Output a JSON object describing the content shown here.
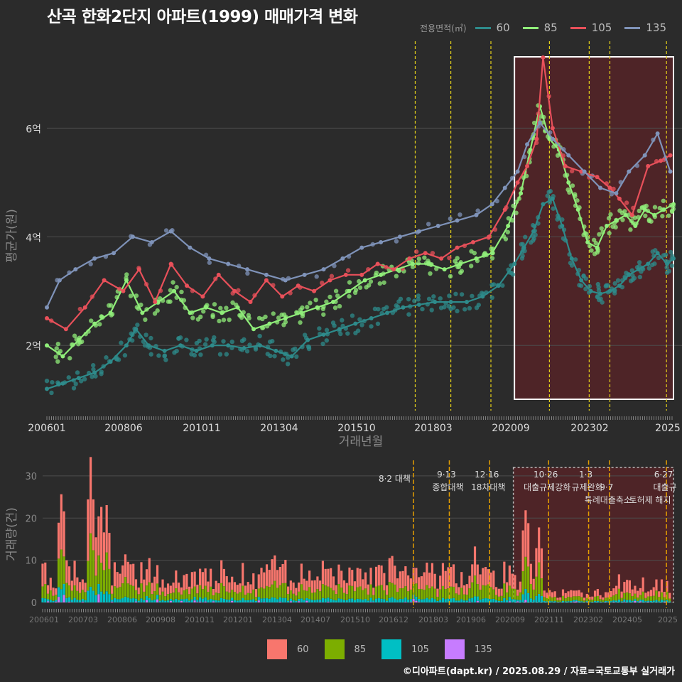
{
  "title": "산곡 한화2단지 아파트(1999) 매매가격 변화",
  "footer": "©디아파트(dapt.kr) / 2025.08.29 / 자료=국토교통부 실거래가",
  "legend_title": "전용면적(㎡)",
  "colors": {
    "60": "#2e8b8b",
    "85": "#90ee7a",
    "105": "#e8505a",
    "135": "#7f93b9",
    "bar60": "#f8766d",
    "bar85": "#7cae00",
    "bar105": "#00bfc4",
    "bar135": "#c77cff"
  },
  "legend_bottom": [
    {
      "key": "60",
      "color": "#f8766d"
    },
    {
      "key": "85",
      "color": "#7cae00"
    },
    {
      "key": "105",
      "color": "#00bfc4"
    },
    {
      "key": "135",
      "color": "#c77cff"
    }
  ],
  "chart_data": [
    {
      "type": "line",
      "title": "산곡 한화2단지 아파트(1999) 매매가격 변화",
      "xlabel": "거래년월",
      "ylabel": "평균가(원)",
      "x_tick_labels": [
        "200601",
        "200806",
        "201011",
        "201304",
        "201510",
        "201803",
        "202009",
        "202302",
        "2025"
      ],
      "y_tick_labels": [
        "2억",
        "4억",
        "6억"
      ],
      "y_ticks": [
        2,
        4,
        6
      ],
      "ylim": [
        0.8,
        7.6
      ],
      "xlim": [
        2006.0,
        2025.7
      ],
      "y_unit": "억원",
      "legend_position": "top-right",
      "highlight_region": [
        2020.7,
        2025.7
      ],
      "policy_lines": [
        2017.58,
        2018.7,
        2019.96,
        2021.8,
        2023.05,
        2023.7,
        2025.48
      ],
      "series": [
        {
          "name": "60",
          "x": [
            2006.0,
            2006.5,
            2007.0,
            2007.5,
            2008.0,
            2008.5,
            2008.8,
            2009.2,
            2009.7,
            2010.2,
            2010.7,
            2011.2,
            2011.7,
            2012.2,
            2012.7,
            2013.2,
            2013.7,
            2014.2,
            2014.7,
            2015.2,
            2015.7,
            2016.2,
            2016.7,
            2017.2,
            2017.7,
            2018.2,
            2018.7,
            2019.2,
            2019.7,
            2020.2,
            2020.7,
            2021.0,
            2021.3,
            2021.6,
            2021.9,
            2022.2,
            2022.5,
            2022.8,
            2023.1,
            2023.4,
            2023.7,
            2024.0,
            2024.3,
            2024.6,
            2024.9,
            2025.2,
            2025.5,
            2025.7
          ],
          "values": [
            1.2,
            1.3,
            1.4,
            1.5,
            1.7,
            2.0,
            2.3,
            2.0,
            1.9,
            2.0,
            1.9,
            2.0,
            2.0,
            1.95,
            2.0,
            1.9,
            1.8,
            2.1,
            2.2,
            2.3,
            2.4,
            2.5,
            2.6,
            2.7,
            2.75,
            2.8,
            2.8,
            2.8,
            2.9,
            3.1,
            3.5,
            3.8,
            4.1,
            4.6,
            4.7,
            4.2,
            3.6,
            3.2,
            3.0,
            2.95,
            3.0,
            3.1,
            3.3,
            3.4,
            3.5,
            3.7,
            3.5,
            3.6
          ]
        },
        {
          "name": "85",
          "x": [
            2006.0,
            2006.5,
            2007.0,
            2007.5,
            2008.0,
            2008.5,
            2009.0,
            2009.5,
            2010.0,
            2010.5,
            2011.0,
            2011.5,
            2012.0,
            2012.5,
            2013.0,
            2013.5,
            2014.0,
            2014.5,
            2015.0,
            2015.5,
            2016.0,
            2016.5,
            2017.0,
            2017.5,
            2018.0,
            2018.5,
            2019.0,
            2019.5,
            2020.0,
            2020.5,
            2020.9,
            2021.2,
            2021.5,
            2021.8,
            2022.1,
            2022.4,
            2022.7,
            2023.0,
            2023.3,
            2023.6,
            2023.9,
            2024.2,
            2024.5,
            2024.8,
            2025.1,
            2025.4,
            2025.7
          ],
          "values": [
            2.0,
            1.8,
            2.1,
            2.4,
            2.6,
            3.2,
            2.6,
            2.8,
            3.0,
            2.6,
            2.7,
            2.6,
            2.7,
            2.3,
            2.4,
            2.5,
            2.6,
            2.7,
            2.8,
            3.0,
            3.2,
            3.3,
            3.4,
            3.5,
            3.5,
            3.4,
            3.5,
            3.6,
            3.7,
            4.2,
            4.8,
            5.6,
            6.4,
            5.8,
            5.6,
            5.0,
            4.5,
            3.9,
            3.8,
            4.2,
            4.3,
            4.4,
            4.2,
            4.5,
            4.4,
            4.5,
            4.6
          ]
        },
        {
          "name": "105",
          "x": [
            2006.0,
            2006.6,
            2007.2,
            2007.8,
            2008.4,
            2008.9,
            2009.4,
            2009.9,
            2010.4,
            2010.9,
            2011.4,
            2011.9,
            2012.4,
            2012.9,
            2013.4,
            2013.9,
            2014.4,
            2014.9,
            2015.4,
            2015.9,
            2016.4,
            2016.9,
            2017.4,
            2017.9,
            2018.4,
            2018.9,
            2019.4,
            2019.9,
            2020.4,
            2020.8,
            2021.1,
            2021.4,
            2021.6,
            2021.9,
            2022.3,
            2022.8,
            2023.3,
            2023.7,
            2024.0,
            2024.4,
            2024.9,
            2025.3,
            2025.6
          ],
          "values": [
            2.5,
            2.3,
            2.7,
            3.2,
            3.0,
            3.4,
            2.8,
            3.5,
            3.1,
            2.9,
            3.3,
            3.0,
            2.8,
            3.2,
            2.9,
            3.1,
            3.0,
            3.2,
            3.3,
            3.3,
            3.5,
            3.4,
            3.6,
            3.7,
            3.6,
            3.8,
            3.9,
            4.0,
            4.5,
            5.0,
            5.3,
            5.8,
            7.3,
            6.0,
            5.3,
            5.2,
            5.1,
            4.9,
            4.7,
            4.4,
            5.3,
            5.4,
            5.5
          ]
        },
        {
          "name": "135",
          "x": [
            2006.0,
            2006.4,
            2006.9,
            2007.5,
            2008.1,
            2008.7,
            2009.3,
            2009.9,
            2010.5,
            2011.1,
            2011.7,
            2012.3,
            2012.9,
            2013.5,
            2014.1,
            2014.7,
            2015.3,
            2015.9,
            2016.5,
            2017.1,
            2017.7,
            2018.3,
            2018.9,
            2019.5,
            2020.0,
            2020.4,
            2020.8,
            2021.1,
            2021.5,
            2021.9,
            2022.4,
            2022.9,
            2023.4,
            2023.9,
            2024.3,
            2024.8,
            2025.2,
            2025.6
          ],
          "values": [
            2.7,
            3.2,
            3.4,
            3.6,
            3.7,
            4.0,
            3.9,
            4.1,
            3.8,
            3.6,
            3.5,
            3.4,
            3.3,
            3.2,
            3.3,
            3.4,
            3.6,
            3.8,
            3.9,
            4.0,
            4.1,
            4.2,
            4.3,
            4.4,
            4.6,
            4.9,
            5.2,
            5.7,
            6.1,
            5.8,
            5.5,
            5.2,
            4.9,
            4.8,
            5.2,
            5.5,
            5.9,
            5.2
          ]
        }
      ]
    },
    {
      "type": "bar",
      "ylabel": "거래량(건)",
      "ylim": [
        0,
        32
      ],
      "y_ticks": [
        0,
        10,
        20,
        30
      ],
      "x_tick_labels": [
        "200601",
        "200703",
        "200806",
        "200908",
        "201011",
        "201201",
        "201304",
        "201407",
        "201510",
        "201612",
        "201803",
        "201906",
        "202009",
        "202111",
        "202302",
        "202405",
        "2025"
      ],
      "series_names": [
        "60",
        "85",
        "105",
        "135"
      ],
      "peaks": [
        {
          "x": 2006.6,
          "v": 27
        },
        {
          "x": 2007.5,
          "v": 31
        },
        {
          "x": 2007.8,
          "v": 24
        },
        {
          "x": 2008.0,
          "v": 22
        },
        {
          "x": 2008.6,
          "v": 12
        },
        {
          "x": 2013.2,
          "v": 11
        },
        {
          "x": 2016.9,
          "v": 11
        },
        {
          "x": 2019.5,
          "v": 12
        },
        {
          "x": 2021.1,
          "v": 23
        },
        {
          "x": 2021.5,
          "v": 17
        }
      ],
      "policy_annotations": [
        {
          "x": 2017.58,
          "date": "8·2 대책",
          "label": ""
        },
        {
          "x": 2018.7,
          "date": "9·13",
          "label": "종합대책"
        },
        {
          "x": 2019.96,
          "date": "12·16",
          "label": "18차대책"
        },
        {
          "x": 2021.8,
          "date": "10·26",
          "label": "대출규제강화"
        },
        {
          "x": 2023.05,
          "date": "1·3",
          "label": "규제완화"
        },
        {
          "x": 2023.7,
          "date": "9·7",
          "label": "특례대출축소"
        },
        {
          "x": 2025.48,
          "date": "6·27",
          "label": "대출규"
        }
      ],
      "extra_label": "토허제 해지"
    }
  ]
}
